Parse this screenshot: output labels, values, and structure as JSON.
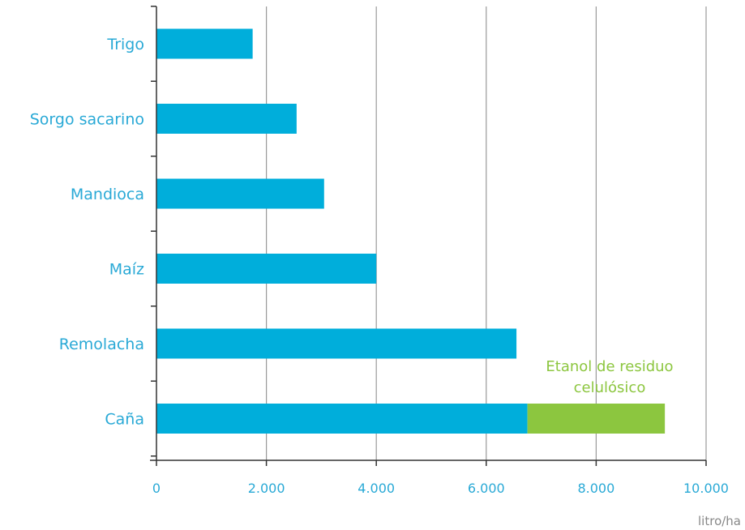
{
  "chart_data": {
    "type": "bar",
    "orientation": "horizontal",
    "stacked": true,
    "categories": [
      "Trigo",
      "Sorgo sacarino",
      "Mandioca",
      "Maíz",
      "Remolacha",
      "Caña"
    ],
    "series": [
      {
        "values": [
          1750,
          2550,
          3050,
          4000,
          6550,
          6750
        ]
      },
      {
        "values": [
          0,
          0,
          0,
          0,
          0,
          2500
        ]
      }
    ],
    "x_ticks": [
      "0",
      "2.000",
      "4.000",
      "6.000",
      "8.000",
      "10.000"
    ],
    "xlim": [
      0,
      10000
    ],
    "xunit": "litro/ha",
    "annotation": {
      "lines": [
        "Etanol de residuo",
        "celulósico"
      ]
    },
    "grid": "vertical",
    "colors": {
      "primary": "#00aedb",
      "secondary": "#8cc63f",
      "text": "#29a9d6",
      "annotation": "#8cc63f",
      "grid": "#9a9a9a",
      "axis": "#333333",
      "unit": "#888888"
    }
  }
}
